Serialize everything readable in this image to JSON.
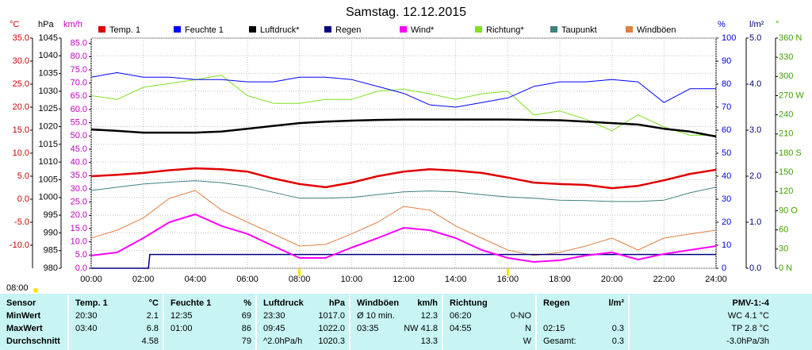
{
  "chart_data": {
    "type": "line",
    "title": "Samstag. 12.12.2015",
    "annotation": "08:00",
    "x": [
      0,
      1,
      2,
      3,
      4,
      5,
      6,
      7,
      8,
      9,
      10,
      11,
      12,
      13,
      14,
      15,
      16,
      17,
      18,
      19,
      20,
      21,
      22,
      23,
      24
    ],
    "xlim": [
      0,
      24
    ],
    "xticks": [
      {
        "value": 0,
        "label": "00:00"
      },
      {
        "value": 2,
        "label": "02:00"
      },
      {
        "value": 4,
        "label": "04:00"
      },
      {
        "value": 6,
        "label": "06:00"
      },
      {
        "value": 8,
        "label": "08:00"
      },
      {
        "value": 10,
        "label": "10:00"
      },
      {
        "value": 12,
        "label": "12:00"
      },
      {
        "value": 14,
        "label": "14:00"
      },
      {
        "value": 16,
        "label": "16:00"
      },
      {
        "value": 18,
        "label": "18:00"
      },
      {
        "value": 20,
        "label": "20:00"
      },
      {
        "value": 22,
        "label": "22:00"
      },
      {
        "value": 24,
        "label": "24:00"
      }
    ],
    "grid": true,
    "grid_axis": 1,
    "axes": [
      {
        "label": "°C",
        "color": "#d00000",
        "side": "left",
        "lim": [
          -15,
          35
        ],
        "ticks": [
          {
            "value": 35,
            "label": "35.0"
          },
          {
            "value": 30,
            "label": "30.0"
          },
          {
            "value": 25,
            "label": "25.0"
          },
          {
            "value": 20,
            "label": "20.0"
          },
          {
            "value": 15,
            "label": "15.0"
          },
          {
            "value": 10,
            "label": "10.0"
          },
          {
            "value": 5,
            "label": "5.0"
          },
          {
            "value": 0,
            "label": "0.0"
          },
          {
            "value": -5,
            "label": "-5.0"
          },
          {
            "value": -10,
            "label": "-10.0"
          }
        ]
      },
      {
        "label": "hPa",
        "color": "#000000",
        "side": "left",
        "lim": [
          980,
          1045
        ],
        "ticks": [
          1045,
          1040,
          1035,
          1030,
          1025,
          1020,
          1015,
          1010,
          1005,
          1000,
          995,
          990,
          985,
          980
        ]
      },
      {
        "label": "km/h",
        "color": "#c000c0",
        "side": "left",
        "lim": [
          0,
          87
        ],
        "ticks": [
          {
            "value": 85,
            "label": "85.0"
          },
          {
            "value": 80,
            "label": "80.0"
          },
          {
            "value": 75,
            "label": "75.0"
          },
          {
            "value": 70,
            "label": "70.0"
          },
          {
            "value": 65,
            "label": "65.0"
          },
          {
            "value": 60,
            "label": "60.0"
          },
          {
            "value": 55,
            "label": "55.0"
          },
          {
            "value": 50,
            "label": "50.0"
          },
          {
            "value": 45,
            "label": "45.0"
          },
          {
            "value": 40,
            "label": "40.0"
          },
          {
            "value": 35,
            "label": "35.0"
          },
          {
            "value": 30,
            "label": "30.0"
          },
          {
            "value": 25,
            "label": "25.0"
          },
          {
            "value": 20,
            "label": "20.0"
          },
          {
            "value": 15,
            "label": "15.0"
          },
          {
            "value": 10,
            "label": "10.0"
          },
          {
            "value": 5,
            "label": "5.0"
          },
          {
            "value": 0,
            "label": "0.0"
          }
        ]
      },
      {
        "label": "%",
        "color": "#0000e0",
        "side": "right",
        "lim": [
          0,
          100
        ],
        "ticks": [
          100,
          90,
          80,
          70,
          60,
          50,
          40,
          30,
          20,
          10,
          0
        ]
      },
      {
        "label": "l/m²",
        "color": "#000080",
        "side": "right",
        "lim": [
          0,
          5
        ],
        "ticks": [
          {
            "value": 5,
            "label": "5.0"
          },
          {
            "value": 4,
            "label": "4.0"
          },
          {
            "value": 3,
            "label": "3.0"
          },
          {
            "value": 2,
            "label": "2.0"
          },
          {
            "value": 1,
            "label": "1.0"
          },
          {
            "value": 0,
            "label": "0.0"
          }
        ]
      },
      {
        "label": "°",
        "color": "#40a000",
        "side": "right",
        "lim": [
          0,
          360
        ],
        "ticks": [
          {
            "value": 360,
            "label": "360 N"
          },
          330,
          300,
          {
            "value": 270,
            "label": "270 W"
          },
          240,
          210,
          {
            "value": 180,
            "label": "180 S"
          },
          150,
          120,
          {
            "value": 90,
            "label": "90 O"
          },
          60,
          30,
          {
            "value": 0,
            "label": "0 N"
          }
        ]
      }
    ],
    "series": [
      {
        "name": "Temp. 1",
        "color": "#e00000",
        "axis": 0,
        "width": 2.5,
        "values": [
          5.0,
          5.3,
          5.7,
          6.3,
          6.7,
          6.5,
          6.0,
          4.5,
          3.3,
          2.6,
          3.6,
          5.0,
          6.0,
          6.5,
          6.2,
          5.7,
          4.7,
          3.6,
          3.3,
          3.1,
          2.4,
          2.9,
          4.1,
          5.5,
          6.4
        ]
      },
      {
        "name": "Feuchte 1",
        "color": "#0000ff",
        "axis": 3,
        "width": 1,
        "values": [
          83,
          85,
          83,
          83,
          82,
          82,
          81,
          81,
          83,
          83,
          82,
          79,
          76,
          71,
          70,
          72,
          74,
          79,
          81,
          81,
          82,
          81,
          72,
          78,
          78
        ]
      },
      {
        "name": "Luftdruck*",
        "color": "#000000",
        "axis": 1,
        "width": 2.5,
        "values": [
          1019.2,
          1018.8,
          1018.3,
          1018.3,
          1018.3,
          1018.6,
          1019.4,
          1020.2,
          1021.0,
          1021.4,
          1021.7,
          1021.9,
          1022.0,
          1022.0,
          1022.0,
          1022.0,
          1022.0,
          1021.9,
          1021.8,
          1021.4,
          1021.0,
          1020.6,
          1019.4,
          1018.6,
          1017.2
        ]
      },
      {
        "name": "Regen",
        "color": "#000080",
        "axis": 4,
        "width": 1.5,
        "x": [
          0,
          2.2,
          2.25,
          24
        ],
        "values": [
          0,
          0,
          0.3,
          0.3
        ]
      },
      {
        "name": "Wind*",
        "color": "#ff00ff",
        "axis": 2,
        "width": 2,
        "values": [
          4.8,
          6.0,
          11.4,
          17.4,
          20.4,
          16.0,
          13.0,
          8.4,
          3.9,
          3.9,
          7.8,
          11.4,
          15.3,
          14.4,
          11.4,
          6.9,
          3.9,
          2.4,
          3.0,
          4.8,
          6.0,
          3.3,
          5.4,
          6.9,
          8.4
        ]
      },
      {
        "name": "Richtung*",
        "color": "#80e020",
        "axis": 5,
        "width": 1,
        "values": [
          270,
          264,
          283,
          289,
          295,
          302,
          270,
          258,
          258,
          264,
          264,
          277,
          280,
          273,
          264,
          273,
          277,
          240,
          246,
          233,
          215,
          240,
          221,
          208,
          208
        ]
      },
      {
        "name": "Taupunkt",
        "color": "#408080",
        "axis": 0,
        "width": 1,
        "values": [
          1.9,
          2.6,
          3.3,
          3.7,
          4.0,
          3.6,
          2.8,
          1.5,
          0.2,
          0.2,
          0.4,
          1.0,
          1.6,
          1.8,
          1.6,
          1.0,
          0.5,
          0.2,
          -0.2,
          -0.3,
          -0.5,
          -0.5,
          -0.2,
          1.4,
          2.6
        ]
      },
      {
        "name": "Windböen",
        "color": "#e08040",
        "axis": 2,
        "width": 1,
        "values": [
          11.4,
          14.4,
          19.0,
          26.4,
          29.4,
          22.0,
          17.4,
          13.0,
          8.4,
          9.0,
          13.0,
          17.4,
          23.4,
          22.0,
          16.0,
          11.4,
          6.9,
          4.8,
          6.0,
          8.4,
          11.4,
          6.9,
          11.4,
          13.0,
          14.4
        ]
      }
    ]
  },
  "table": {
    "sensor": "Sensor",
    "header": [
      [
        "Temp. 1",
        "°C"
      ],
      [
        "Feuchte 1",
        "%"
      ],
      [
        "Luftdruck",
        "hPa"
      ],
      [
        "Windböen",
        "km/h"
      ],
      [
        "Richtung"
      ],
      [
        "Regen",
        "l/m²"
      ],
      [
        "PMV-1:-4"
      ]
    ],
    "rows": [
      {
        "label": "MinWert",
        "cells": [
          [
            "20:30",
            "2.1"
          ],
          [
            "12:35",
            "69"
          ],
          [
            "23:30",
            "1017.0"
          ],
          [
            "Ø 10 min.",
            "12.3"
          ],
          [
            "06:20",
            "0-NO"
          ],
          [],
          [
            "WC 4.1 °C"
          ]
        ]
      },
      {
        "label": "MaxWert",
        "cells": [
          [
            "03:40",
            "6.8"
          ],
          [
            "01:00",
            "86"
          ],
          [
            "09:45",
            "1022.0"
          ],
          [
            "03:35",
            "NW 41.8"
          ],
          [
            "04:55",
            "N"
          ],
          [
            "02:15",
            "0.3"
          ],
          [
            "TP 2.8 °C"
          ]
        ]
      },
      {
        "label": "Durchschnitt",
        "cells": [
          [
            "4.58"
          ],
          [
            "79"
          ],
          [
            "^2.0hPa/h",
            "1020.3"
          ],
          [
            "13.3"
          ],
          [
            "W"
          ],
          [
            "Gesamt:",
            "0.3"
          ],
          [
            "-3.0hPa/3h"
          ]
        ]
      }
    ]
  }
}
